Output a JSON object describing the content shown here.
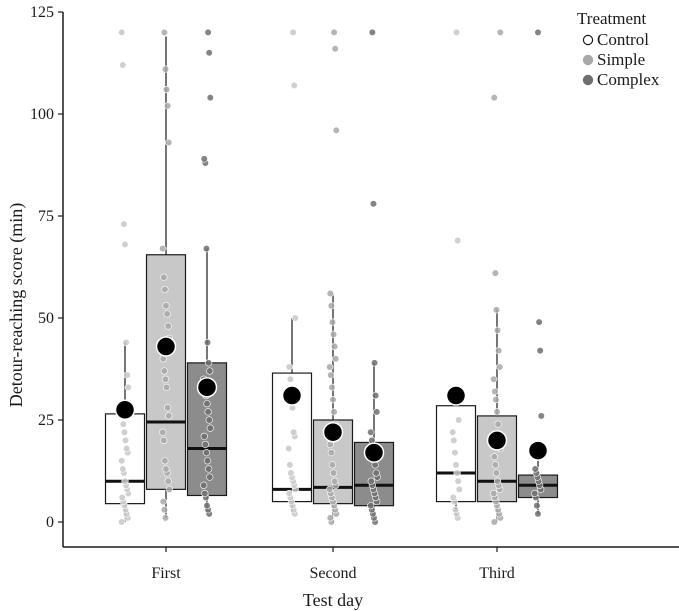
{
  "chart_data": {
    "type": "boxplot",
    "xlabel": "Test day",
    "ylabel": "Detour-reaching score (min)",
    "ylim": [
      0,
      125
    ],
    "yticks": [
      0,
      25,
      50,
      75,
      100,
      125
    ],
    "categories": [
      "First",
      "Second",
      "Third"
    ],
    "legend": {
      "title": "Treatment",
      "position": "top-right"
    },
    "series": [
      {
        "name": "Control",
        "fill": "#ffffff",
        "point_color": "#c8c8c8",
        "boxes": [
          {
            "q1": 4.5,
            "median": 10,
            "q3": 26.5,
            "whisker_low": 0,
            "whisker_high": 44,
            "mean": 27.5,
            "points": [
              0,
              1,
              2,
              3,
              4,
              5,
              6,
              7,
              8,
              9,
              10,
              12,
              13,
              15,
              17,
              18,
              20,
              22,
              24,
              26,
              33,
              36,
              44,
              68,
              73,
              112,
              120
            ]
          },
          {
            "q1": 5,
            "median": 8,
            "q3": 36.5,
            "whisker_low": 2,
            "whisker_high": 50,
            "mean": 31,
            "points": [
              2,
              3,
              4,
              5,
              6,
              7,
              8,
              9,
              10,
              11,
              12,
              14,
              18,
              21,
              22,
              28,
              31,
              35,
              38,
              50,
              107,
              120
            ]
          },
          {
            "q1": 5,
            "median": 12,
            "q3": 28.5,
            "whisker_low": 1,
            "whisker_high": 28.5,
            "mean": 31,
            "points": [
              1,
              2,
              3,
              5,
              6,
              8,
              10,
              12,
              14,
              17,
              20,
              22,
              25,
              69,
              120
            ]
          }
        ]
      },
      {
        "name": "Simple",
        "fill": "#c8c8c8",
        "point_color": "#a8a8a8",
        "boxes": [
          {
            "q1": 8,
            "median": 24.5,
            "q3": 65.5,
            "whisker_low": 1,
            "whisker_high": 119,
            "mean": 43,
            "points": [
              1,
              3,
              5,
              8,
              10,
              12,
              13,
              15,
              20,
              22,
              26,
              28,
              33,
              35,
              37,
              40,
              45,
              48,
              51,
              53,
              57,
              60,
              67,
              93,
              102,
              106,
              111,
              120
            ]
          },
          {
            "q1": 4.5,
            "median": 8.5,
            "q3": 25,
            "whisker_low": 0,
            "whisker_high": 56,
            "mean": 22,
            "points": [
              0,
              1,
              2,
              3,
              4,
              5,
              6,
              7,
              8,
              9,
              10,
              12,
              14,
              17,
              19,
              21,
              24,
              27,
              30,
              33,
              36,
              38,
              40,
              43,
              46,
              49,
              53,
              56,
              96,
              116,
              120
            ]
          },
          {
            "q1": 5,
            "median": 10,
            "q3": 26,
            "whisker_low": 0,
            "whisker_high": 52,
            "mean": 20,
            "points": [
              0,
              1,
              2,
              3,
              4,
              5,
              6,
              7,
              8,
              9,
              10,
              12,
              14,
              16,
              18,
              21,
              24,
              27,
              30,
              32,
              35,
              38,
              42,
              47,
              52,
              61,
              104,
              120
            ]
          }
        ]
      },
      {
        "name": "Complex",
        "fill": "#8c8c8c",
        "point_color": "#6e6e6e",
        "boxes": [
          {
            "q1": 6.5,
            "median": 18,
            "q3": 39,
            "whisker_low": 2,
            "whisker_high": 67,
            "mean": 33,
            "points": [
              2,
              3,
              4,
              6,
              7,
              9,
              11,
              13,
              15,
              17,
              19,
              21,
              23,
              25,
              27,
              29,
              31,
              33,
              35,
              37,
              39,
              44,
              67,
              88,
              89,
              104,
              115,
              120
            ]
          },
          {
            "q1": 4,
            "median": 9,
            "q3": 19.5,
            "whisker_low": 0,
            "whisker_high": 39,
            "mean": 17,
            "points": [
              0,
              1,
              2,
              3,
              4,
              5,
              6,
              7,
              8,
              9,
              10,
              11,
              12,
              14,
              16,
              18,
              20,
              22,
              27,
              31,
              39,
              78,
              120
            ]
          },
          {
            "q1": 6,
            "median": 9,
            "q3": 11.5,
            "whisker_low": 2,
            "whisker_high": 20,
            "mean": 17.5,
            "points": [
              2,
              4,
              6,
              7,
              8,
              9,
              10,
              11,
              12,
              13,
              26,
              42,
              49,
              120
            ]
          }
        ]
      }
    ]
  }
}
